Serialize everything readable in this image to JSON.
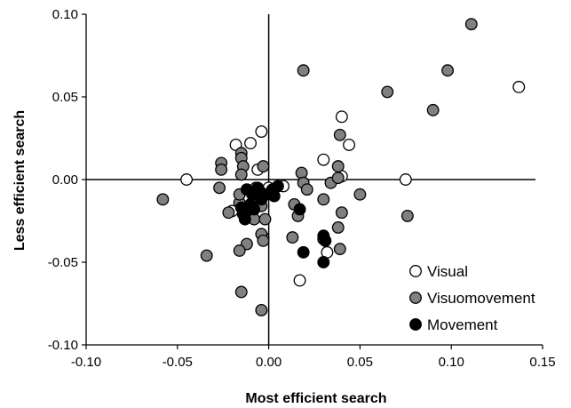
{
  "chart_data": {
    "type": "scatter",
    "xlabel": "Most efficient search",
    "ylabel": "Less efficient search",
    "xlim": [
      -0.1,
      0.15
    ],
    "ylim": [
      -0.1,
      0.1
    ],
    "x_ticks": [
      "-0.10",
      "-0.05",
      "0.00",
      "0.05",
      "0.10",
      "0.15"
    ],
    "y_ticks": [
      "-0.10",
      "-0.05",
      "0.00",
      "0.05",
      "0.10"
    ],
    "grid": false,
    "legend_position": "bottom-right",
    "series": [
      {
        "name": "Visual",
        "fill": "#ffffff",
        "stroke": "#000000",
        "points": [
          [
            -0.045,
            0.0
          ],
          [
            -0.018,
            0.021
          ],
          [
            -0.01,
            0.022
          ],
          [
            -0.004,
            0.029
          ],
          [
            -0.006,
            0.006
          ],
          [
            -0.007,
            -0.005
          ],
          [
            -0.02,
            -0.019
          ],
          [
            -0.003,
            -0.035
          ],
          [
            0.0,
            -0.005
          ],
          [
            0.008,
            -0.004
          ],
          [
            0.03,
            0.012
          ],
          [
            0.04,
            0.038
          ],
          [
            0.044,
            0.021
          ],
          [
            0.04,
            0.002
          ],
          [
            0.075,
            0.0
          ],
          [
            0.137,
            0.056
          ],
          [
            0.017,
            -0.061
          ],
          [
            0.032,
            -0.044
          ]
        ]
      },
      {
        "name": "Visuomovement",
        "fill": "#808080",
        "stroke": "#000000",
        "points": [
          [
            -0.058,
            -0.012
          ],
          [
            -0.034,
            -0.046
          ],
          [
            -0.026,
            0.01
          ],
          [
            -0.026,
            0.006
          ],
          [
            -0.027,
            -0.005
          ],
          [
            -0.022,
            -0.02
          ],
          [
            -0.016,
            -0.014
          ],
          [
            -0.015,
            0.016
          ],
          [
            -0.015,
            0.013
          ],
          [
            -0.014,
            0.008
          ],
          [
            -0.015,
            0.003
          ],
          [
            -0.016,
            -0.009
          ],
          [
            -0.013,
            -0.022
          ],
          [
            -0.012,
            -0.039
          ],
          [
            -0.016,
            -0.043
          ],
          [
            -0.015,
            -0.068
          ],
          [
            -0.01,
            -0.019
          ],
          [
            -0.008,
            -0.024
          ],
          [
            -0.004,
            -0.033
          ],
          [
            -0.003,
            -0.037
          ],
          [
            -0.003,
            0.008
          ],
          [
            -0.004,
            -0.016
          ],
          [
            -0.002,
            -0.024
          ],
          [
            -0.004,
            -0.079
          ],
          [
            0.019,
            0.066
          ],
          [
            0.018,
            0.004
          ],
          [
            0.019,
            -0.002
          ],
          [
            0.021,
            -0.006
          ],
          [
            0.014,
            -0.015
          ],
          [
            0.016,
            -0.022
          ],
          [
            0.013,
            -0.035
          ],
          [
            0.03,
            -0.012
          ],
          [
            0.034,
            -0.002
          ],
          [
            0.038,
            0.008
          ],
          [
            0.039,
            0.027
          ],
          [
            0.038,
            0.001
          ],
          [
            0.038,
            -0.029
          ],
          [
            0.039,
            -0.042
          ],
          [
            0.04,
            -0.02
          ],
          [
            0.05,
            -0.009
          ],
          [
            0.065,
            0.053
          ],
          [
            0.076,
            -0.022
          ],
          [
            0.09,
            0.042
          ],
          [
            0.098,
            0.066
          ],
          [
            0.111,
            0.094
          ],
          [
            0.03,
            -0.036
          ]
        ]
      },
      {
        "name": "Movement",
        "fill": "#000000",
        "stroke": "#000000",
        "points": [
          [
            -0.015,
            -0.017
          ],
          [
            -0.014,
            -0.021
          ],
          [
            -0.013,
            -0.024
          ],
          [
            -0.012,
            -0.006
          ],
          [
            -0.012,
            -0.019
          ],
          [
            -0.01,
            -0.015
          ],
          [
            -0.009,
            -0.009
          ],
          [
            -0.008,
            -0.018
          ],
          [
            -0.006,
            -0.005
          ],
          [
            -0.005,
            -0.007
          ],
          [
            -0.004,
            -0.012
          ],
          [
            -0.002,
            -0.009
          ],
          [
            0.003,
            -0.01
          ],
          [
            0.005,
            -0.004
          ],
          [
            0.002,
            -0.006
          ],
          [
            0.017,
            -0.018
          ],
          [
            0.019,
            -0.044
          ],
          [
            0.03,
            -0.034
          ],
          [
            0.03,
            -0.05
          ],
          [
            0.031,
            -0.037
          ]
        ]
      }
    ]
  }
}
